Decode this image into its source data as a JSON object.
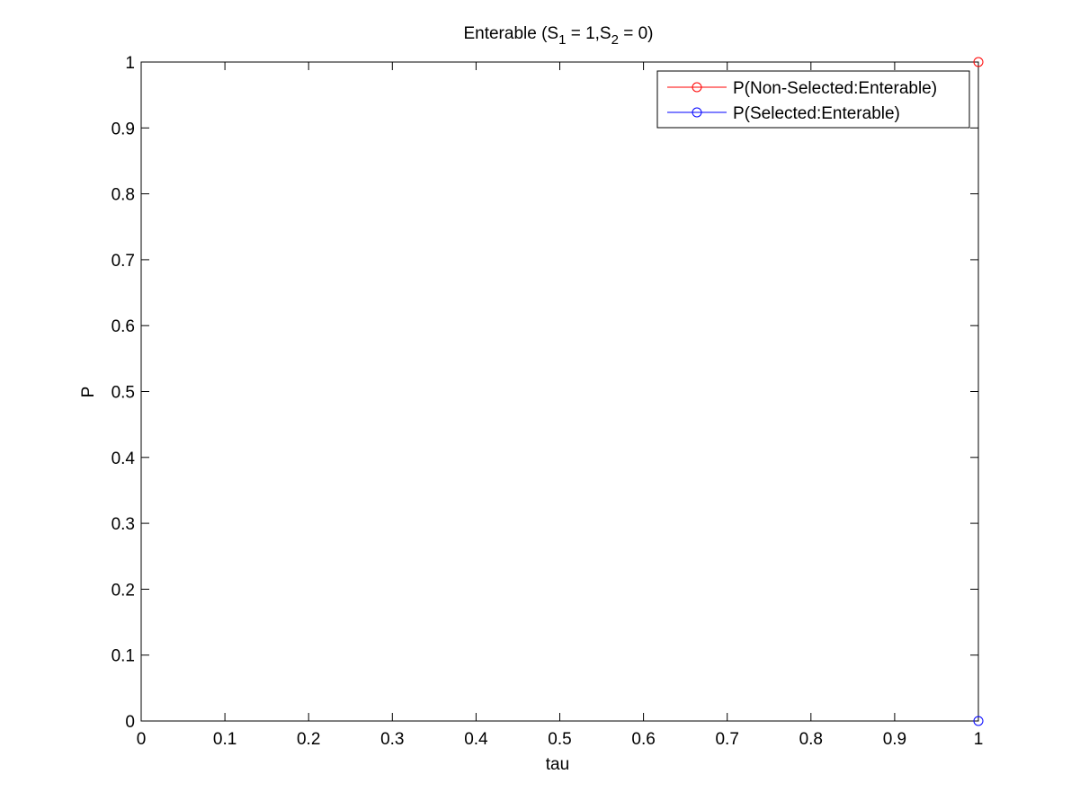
{
  "chart_data": {
    "type": "line",
    "title": {
      "prefix": "Enterable (S",
      "sub1": "1",
      "mid": " = 1,S",
      "sub2": "2",
      "suffix": " = 0)"
    },
    "xlabel": "tau",
    "ylabel": "P",
    "xlim": [
      0,
      1
    ],
    "ylim": [
      0,
      1
    ],
    "xticks": [
      0,
      0.1,
      0.2,
      0.3,
      0.4,
      0.5,
      0.6,
      0.7,
      0.8,
      0.9,
      1
    ],
    "xtick_labels": [
      "0",
      "0.1",
      "0.2",
      "0.3",
      "0.4",
      "0.5",
      "0.6",
      "0.7",
      "0.8",
      "0.9",
      "1"
    ],
    "yticks": [
      0,
      0.1,
      0.2,
      0.3,
      0.4,
      0.5,
      0.6,
      0.7,
      0.8,
      0.9,
      1
    ],
    "ytick_labels": [
      "0",
      "0.1",
      "0.2",
      "0.3",
      "0.4",
      "0.5",
      "0.6",
      "0.7",
      "0.8",
      "0.9",
      "1"
    ],
    "grid": false,
    "legend_position": "top-right",
    "series": [
      {
        "name": "P(Non-Selected:Enterable)",
        "color": "#ff0000",
        "marker": "circle",
        "x": [
          1
        ],
        "y": [
          1
        ]
      },
      {
        "name": "P(Selected:Enterable)",
        "color": "#0000ff",
        "marker": "circle",
        "x": [
          1
        ],
        "y": [
          0
        ]
      }
    ]
  }
}
